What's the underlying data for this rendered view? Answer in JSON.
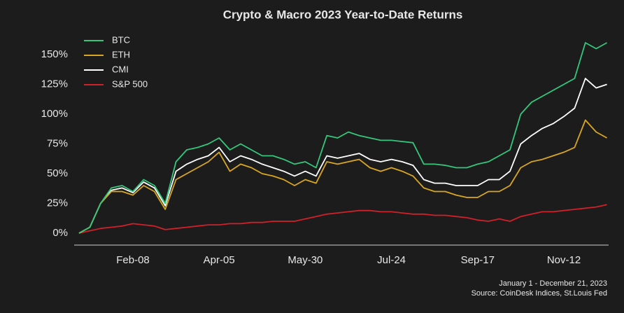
{
  "chart_data": {
    "type": "line",
    "title": "Crypto & Macro 2023 Year-to-Date Returns",
    "notes": [
      "January 1 - December 21, 2023",
      "Source: CoinDesk Indices, St.Louis Fed"
    ],
    "categories": [
      null,
      null,
      null,
      null,
      null,
      "Feb-08",
      null,
      null,
      null,
      null,
      null,
      null,
      null,
      "Apr-05",
      null,
      null,
      null,
      null,
      null,
      null,
      null,
      "May-30",
      null,
      null,
      null,
      null,
      null,
      null,
      null,
      "Jul-24",
      null,
      null,
      null,
      null,
      null,
      null,
      null,
      "Sep-17",
      null,
      null,
      null,
      null,
      null,
      null,
      null,
      "Nov-12",
      null,
      null,
      null,
      null
    ],
    "series": [
      {
        "name": "BTC",
        "color": "#34c77b",
        "values": [
          0,
          5,
          25,
          38,
          40,
          35,
          45,
          40,
          25,
          60,
          70,
          72,
          75,
          80,
          70,
          75,
          70,
          65,
          65,
          62,
          58,
          60,
          55,
          82,
          80,
          85,
          82,
          80,
          78,
          78,
          77,
          76,
          58,
          58,
          57,
          55,
          55,
          58,
          60,
          65,
          70,
          100,
          110,
          115,
          120,
          125,
          130,
          160,
          155,
          160
        ]
      },
      {
        "name": "ETH",
        "color": "#d9a621",
        "values": [
          0,
          5,
          25,
          35,
          35,
          32,
          40,
          35,
          20,
          45,
          50,
          55,
          60,
          68,
          52,
          58,
          55,
          50,
          48,
          45,
          40,
          45,
          42,
          60,
          58,
          60,
          62,
          55,
          52,
          55,
          52,
          48,
          38,
          35,
          35,
          32,
          30,
          30,
          35,
          35,
          40,
          55,
          60,
          62,
          65,
          68,
          72,
          95,
          85,
          80
        ]
      },
      {
        "name": "CMI",
        "color": "#ffffff",
        "values": [
          0,
          5,
          25,
          36,
          38,
          34,
          43,
          38,
          23,
          52,
          58,
          62,
          65,
          72,
          60,
          65,
          62,
          58,
          55,
          52,
          48,
          52,
          48,
          65,
          63,
          65,
          67,
          62,
          60,
          62,
          60,
          57,
          45,
          42,
          42,
          40,
          40,
          40,
          45,
          45,
          52,
          75,
          82,
          88,
          92,
          98,
          105,
          130,
          122,
          125
        ]
      },
      {
        "name": "S&P 500",
        "color": "#d0202a",
        "values": [
          0,
          2,
          4,
          5,
          6,
          8,
          7,
          6,
          3,
          4,
          5,
          6,
          7,
          7,
          8,
          8,
          9,
          9,
          10,
          10,
          10,
          12,
          14,
          16,
          17,
          18,
          19,
          19,
          18,
          18,
          17,
          16,
          16,
          15,
          15,
          14,
          13,
          11,
          10,
          12,
          10,
          14,
          16,
          18,
          18,
          19,
          20,
          21,
          22,
          24
        ]
      }
    ],
    "ylim": [
      -5,
      165
    ],
    "yticks": [
      {
        "value": 0,
        "label": "0%"
      },
      {
        "value": 25,
        "label": "25%"
      },
      {
        "value": 50,
        "label": "50%"
      },
      {
        "value": 75,
        "label": "75%"
      },
      {
        "value": 100,
        "label": "100%"
      },
      {
        "value": 125,
        "label": "125%"
      },
      {
        "value": 150,
        "label": "150%"
      }
    ],
    "legend": "upper left"
  }
}
